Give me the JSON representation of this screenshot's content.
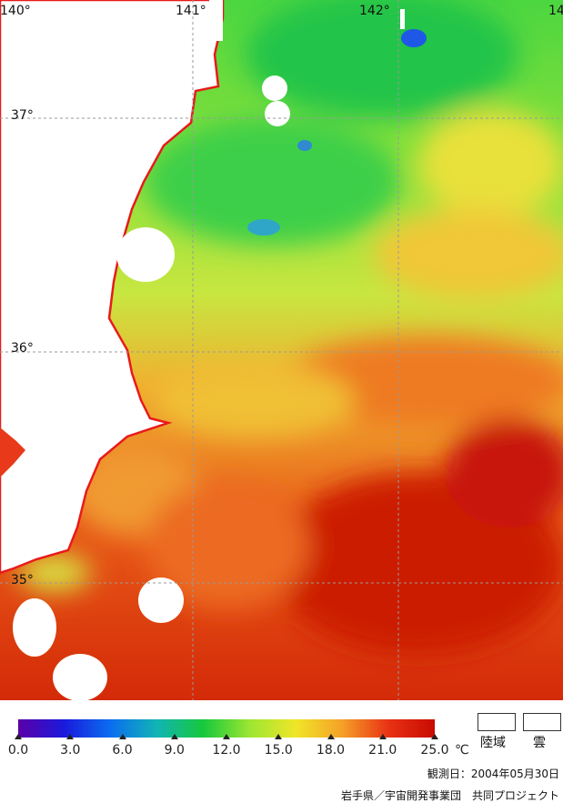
{
  "map": {
    "lon_labels": [
      "140°",
      "141°",
      "142°",
      "14"
    ],
    "lat_labels": [
      "37°",
      "36°",
      "35°"
    ]
  },
  "legend": {
    "ticks": [
      "0.0",
      "3.0",
      "6.0",
      "9.0",
      "12.0",
      "15.0",
      "18.0",
      "21.0",
      "25.0"
    ],
    "unit": "℃",
    "colors": [
      "#5a00a8",
      "#1a1adc",
      "#0a6ef0",
      "#12b4b4",
      "#16c83c",
      "#9ce632",
      "#f0e628",
      "#f5a028",
      "#e83214",
      "#c80a00"
    ],
    "keys": [
      {
        "name": "land",
        "label": "陸域"
      },
      {
        "name": "cloud",
        "label": "雲"
      }
    ]
  },
  "footer": {
    "date": "観測日：2004年05月30日",
    "credit": "岩手県／宇宙開発事業団　共同プロジェクト"
  }
}
